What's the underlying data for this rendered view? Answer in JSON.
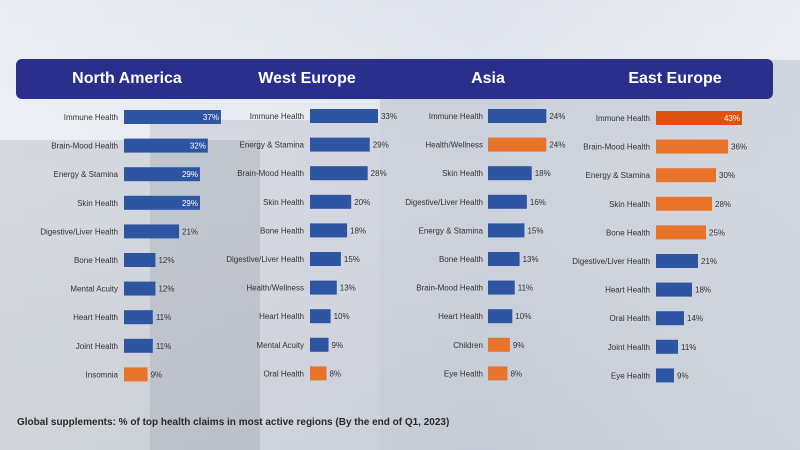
{
  "colors": {
    "header_bg": "#2b2f8c",
    "bar_blue": "#2e55a2",
    "bar_orange": "#e8732a",
    "bar_orange_dark": "#e0530e"
  },
  "footnote": "Global supplements: % of top health claims in most active regions (By the end of Q1, 2023)",
  "chart_data": [
    {
      "type": "bar",
      "title": "North America",
      "categories": [
        "Immune Health",
        "Brain-Mood Health",
        "Energy & Stamina",
        "Skin Health",
        "Digestive/Liver Health",
        "Bone Health",
        "Mental Acuity",
        "Heart Health",
        "Joint Health",
        "Insomnia"
      ],
      "values": [
        37,
        32,
        29,
        29,
        21,
        12,
        12,
        11,
        11,
        9
      ],
      "labels": [
        "37%",
        "32%",
        "29%",
        "29%",
        "21%",
        "12%",
        "12%",
        "11%",
        "11%",
        "9%"
      ],
      "colors": [
        "blue",
        "blue",
        "blue",
        "blue",
        "blue",
        "blue",
        "blue",
        "blue",
        "blue",
        "orange"
      ]
    },
    {
      "type": "bar",
      "title": "West Europe",
      "categories": [
        "Immune Health",
        "Energy & Stamina",
        "Brain-Mood Health",
        "Skin Health",
        "Bone Health",
        "Digestive/Liver Health",
        "Health/Wellness",
        "Heart Health",
        "Mental Acuity",
        "Oral Health"
      ],
      "values": [
        33,
        29,
        28,
        20,
        18,
        15,
        13,
        10,
        9,
        8
      ],
      "labels": [
        "33%",
        "29%",
        "28%",
        "20%",
        "18%",
        "15%",
        "13%",
        "10%",
        "9%",
        "8%"
      ],
      "colors": [
        "blue",
        "blue",
        "blue",
        "blue",
        "blue",
        "blue",
        "blue",
        "blue",
        "blue",
        "orange"
      ]
    },
    {
      "type": "bar",
      "title": "Asia",
      "categories": [
        "Immune Health",
        "Health/Wellness",
        "Skin Health",
        "Digestive/Liver Health",
        "Energy & Stamina",
        "Bone Health",
        "Brain-Mood Health",
        "Heart Health",
        "Children",
        "Eye Health"
      ],
      "values": [
        24,
        24,
        18,
        16,
        15,
        13,
        11,
        10,
        9,
        8
      ],
      "labels": [
        "24%",
        "24%",
        "18%",
        "16%",
        "15%",
        "13%",
        "11%",
        "10%",
        "9%",
        "8%"
      ],
      "colors": [
        "blue",
        "orange",
        "blue",
        "blue",
        "blue",
        "blue",
        "blue",
        "blue",
        "orange",
        "orange"
      ]
    },
    {
      "type": "bar",
      "title": "East Europe",
      "categories": [
        "Immune Health",
        "Brain-Mood Health",
        "Energy & Stamina",
        "Skin Health",
        "Bone Health",
        "Digestive/Liver Health",
        "Heart Health",
        "Oral Health",
        "Joint Health",
        "Eye Health"
      ],
      "values": [
        43,
        36,
        30,
        28,
        25,
        21,
        18,
        14,
        11,
        9
      ],
      "labels": [
        "43%",
        "36%",
        "30%",
        "28%",
        "25%",
        "21%",
        "18%",
        "14%",
        "11%",
        "9%"
      ],
      "colors": [
        "orange_dark",
        "orange",
        "orange",
        "orange",
        "orange",
        "blue",
        "blue",
        "blue",
        "blue",
        "blue"
      ]
    }
  ]
}
